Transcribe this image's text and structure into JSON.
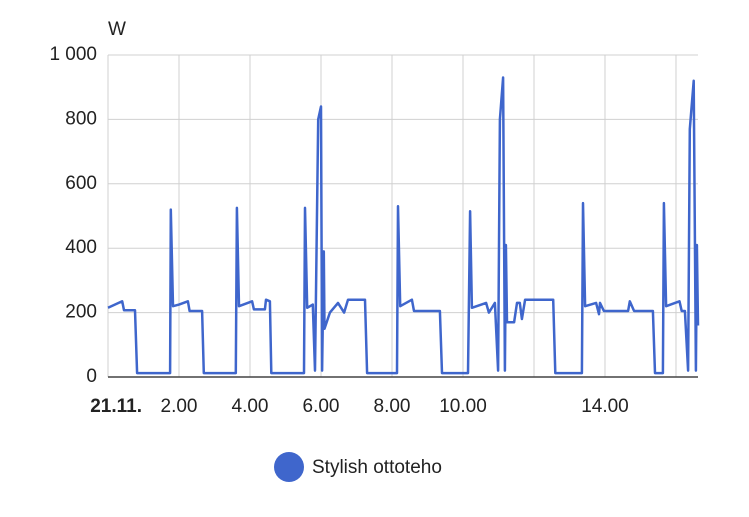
{
  "chart_data": {
    "type": "line",
    "y_label": "W",
    "x": [
      0,
      0.4,
      0.45,
      0.76,
      0.82,
      1.75,
      1.77,
      1.83,
      2.0,
      2.25,
      2.3,
      2.65,
      2.7,
      3.6,
      3.63,
      3.69,
      4.06,
      4.11,
      4.42,
      4.45,
      4.56,
      4.6,
      5.52,
      5.55,
      5.61,
      5.77,
      5.83,
      5.92,
      6.0,
      6.03,
      6.08,
      6.1,
      6.25,
      6.48,
      6.65,
      6.76,
      7.24,
      7.3,
      8.14,
      8.17,
      8.23,
      8.56,
      8.62,
      9.35,
      9.41,
      10.14,
      10.2,
      10.25,
      10.65,
      10.73,
      10.9,
      10.99,
      11.04,
      11.13,
      11.18,
      11.21,
      11.24,
      11.44,
      11.52,
      11.6,
      11.66,
      11.75,
      12.54,
      12.6,
      13.35,
      13.38,
      13.44,
      13.75,
      13.83,
      13.86,
      13.97,
      14.65,
      14.7,
      14.82,
      15.35,
      15.41,
      15.63,
      15.66,
      15.72,
      16.1,
      16.16,
      16.25,
      16.34,
      16.39,
      16.5,
      16.56,
      16.59,
      16.62
    ],
    "series": [
      {
        "name": "Stylish ottoteho",
        "color": "#3f66cc",
        "values": [
          215,
          235,
          207,
          207,
          12,
          12,
          520,
          220,
          225,
          235,
          205,
          205,
          12,
          12,
          525,
          220,
          235,
          210,
          210,
          240,
          235,
          12,
          12,
          525,
          215,
          225,
          20,
          800,
          840,
          20,
          390,
          150,
          200,
          230,
          200,
          240,
          240,
          12,
          12,
          530,
          220,
          240,
          205,
          205,
          12,
          12,
          515,
          215,
          230,
          200,
          230,
          20,
          800,
          930,
          20,
          410,
          170,
          170,
          230,
          230,
          180,
          240,
          240,
          12,
          12,
          540,
          220,
          230,
          195,
          230,
          205,
          205,
          235,
          205,
          205,
          12,
          12,
          540,
          220,
          235,
          205,
          205,
          20,
          770,
          920,
          20,
          410,
          160
        ]
      }
    ],
    "xlim": [
      0,
      16.62
    ],
    "xticks": [
      {
        "value": 0,
        "label": "21.11."
      },
      {
        "value": 2,
        "label": "2.00"
      },
      {
        "value": 4,
        "label": "4.00"
      },
      {
        "value": 6,
        "label": "6.00"
      },
      {
        "value": 8,
        "label": "8.00"
      },
      {
        "value": 10,
        "label": "10.00"
      },
      {
        "value": 12,
        "label": null
      },
      {
        "value": 14,
        "label": "14.00"
      },
      {
        "value": 16,
        "label": null
      }
    ],
    "ylim": [
      0,
      1000
    ],
    "yticks": [
      0,
      200,
      400,
      600,
      800,
      {
        "value": 1000,
        "label": "1 000"
      }
    ],
    "grid": true
  }
}
